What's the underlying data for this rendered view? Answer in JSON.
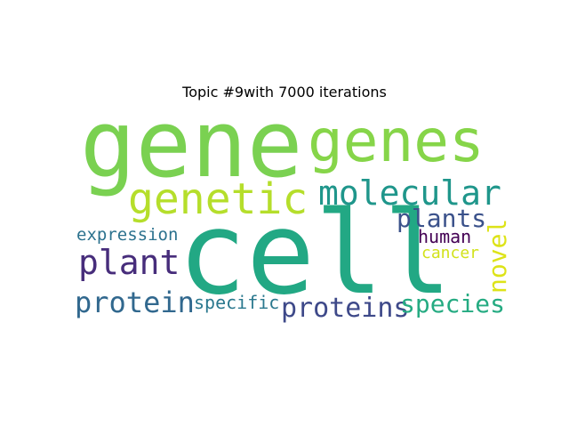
{
  "title": "Topic #9with 7000 iterations",
  "words": [
    {
      "key": "gene",
      "text": "gene",
      "color": "#7ad151"
    },
    {
      "key": "genes",
      "text": "genes",
      "color": "#86d549"
    },
    {
      "key": "genetic",
      "text": "genetic",
      "color": "#b5de2b"
    },
    {
      "key": "molecular",
      "text": "molecular",
      "color": "#1f968b"
    },
    {
      "key": "cell",
      "text": "cell",
      "color": "#22a884"
    },
    {
      "key": "plants",
      "text": "plants",
      "color": "#3b528b"
    },
    {
      "key": "novel",
      "text": "novel",
      "color": "#dde318"
    },
    {
      "key": "expression",
      "text": "expression",
      "color": "#2c728e"
    },
    {
      "key": "human",
      "text": "human",
      "color": "#440154"
    },
    {
      "key": "plant",
      "text": "plant",
      "color": "#472d7b"
    },
    {
      "key": "cancer",
      "text": "cancer",
      "color": "#d2e21b"
    },
    {
      "key": "protein",
      "text": "protein",
      "color": "#31688e"
    },
    {
      "key": "specific",
      "text": "specific",
      "color": "#2a788e"
    },
    {
      "key": "proteins",
      "text": "proteins",
      "color": "#3e4989"
    },
    {
      "key": "species",
      "text": "species",
      "color": "#25ab82"
    }
  ]
}
